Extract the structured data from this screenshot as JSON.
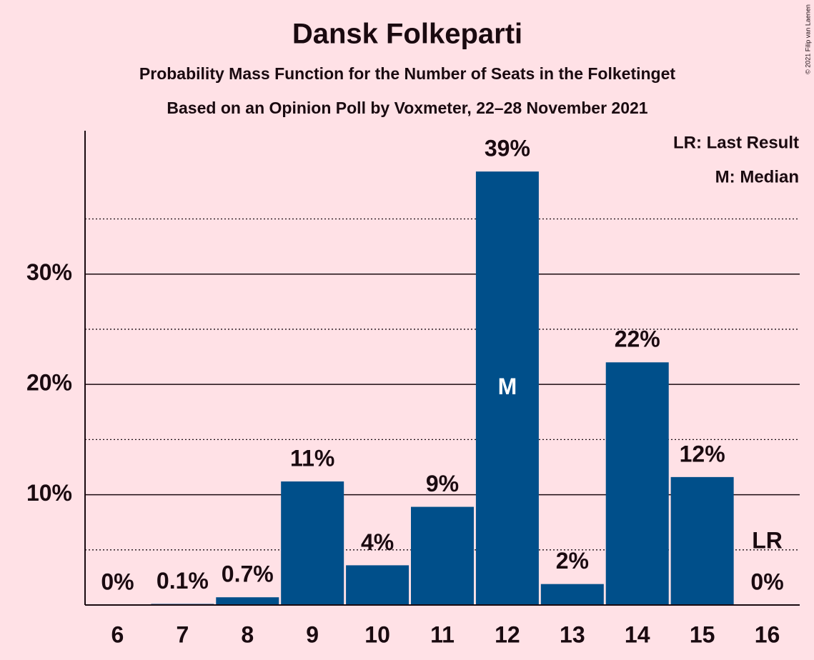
{
  "chart_data": {
    "type": "bar",
    "title": "Dansk Folkeparti",
    "subtitle": "Probability Mass Function for the Number of Seats in the Folketinget",
    "subtitle2": "Based on an Opinion Poll by Voxmeter, 22–28 November 2021",
    "categories": [
      "6",
      "7",
      "8",
      "9",
      "10",
      "11",
      "12",
      "13",
      "14",
      "15",
      "16"
    ],
    "values": [
      0,
      0.1,
      0.7,
      11.2,
      3.6,
      8.9,
      39.3,
      1.9,
      22.0,
      11.6,
      0
    ],
    "value_labels": [
      "0%",
      "0.1%",
      "0.7%",
      "11%",
      "4%",
      "9%",
      "39%",
      "2%",
      "22%",
      "12%",
      "0%"
    ],
    "color": "#004f8a",
    "ylim": [
      0,
      43
    ],
    "yticks": [
      {
        "value": 10,
        "label": "10%"
      },
      {
        "value": 20,
        "label": "20%"
      },
      {
        "value": 30,
        "label": "30%"
      }
    ],
    "minor_yticks": [
      5,
      15,
      25,
      35
    ],
    "grid": true,
    "annotations": [
      {
        "category": "12",
        "text": "M"
      },
      {
        "category": "16",
        "text": "LR"
      }
    ],
    "legend": [
      "LR: Last Result",
      "M: Median"
    ],
    "copyright": "© 2021 Filip van Laenen"
  }
}
